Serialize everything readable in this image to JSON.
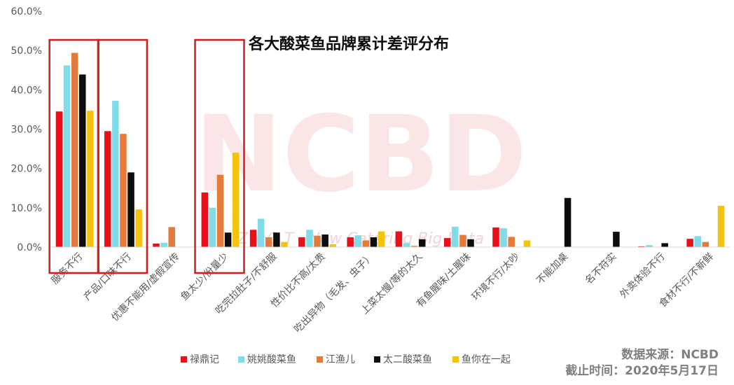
{
  "chart_data": {
    "type": "bar",
    "title": "各大酸菜鱼品牌累计差评分布",
    "ylim": [
      0,
      60
    ],
    "yticks": [
      "0.0%",
      "10.0%",
      "20.0%",
      "30.0%",
      "40.0%",
      "50.0%",
      "60.0%"
    ],
    "categories": [
      "服务不行",
      "产品/口味不行",
      "优惠不能用/虚假宣传",
      "鱼太少/份量少",
      "吃完拉肚子/不舒服",
      "性价比不高/太贵",
      "吃出异物（毛发、虫子）",
      "上菜太慢/等的太久",
      "有鱼腥味/土腥味",
      "环境不行/太吵",
      "不能加桌",
      "名不符实",
      "外卖体验不行",
      "食材不行/不新鲜"
    ],
    "series": [
      {
        "name": "禄鼎记",
        "color": "#e8101a",
        "values": [
          34.5,
          29.5,
          0.9,
          13.9,
          4.4,
          2.5,
          2.5,
          4.0,
          2.3,
          5.0,
          0,
          0,
          0.2,
          2.1
        ]
      },
      {
        "name": "姚姚酸菜鱼",
        "color": "#7fdce8",
        "values": [
          46.2,
          37.2,
          1.1,
          10.0,
          7.2,
          4.4,
          3.0,
          1.0,
          5.2,
          4.8,
          0,
          0,
          0.5,
          2.8
        ]
      },
      {
        "name": "江渔儿",
        "color": "#e47b3a",
        "values": [
          49.4,
          28.8,
          5.1,
          18.4,
          2.5,
          2.9,
          1.7,
          0.3,
          3.1,
          2.6,
          0,
          0,
          0,
          1.3
        ]
      },
      {
        "name": "太二酸菜鱼",
        "color": "#0d0d0d",
        "values": [
          43.9,
          19.0,
          0,
          3.7,
          3.7,
          3.2,
          2.5,
          2.0,
          2.0,
          0,
          12.5,
          3.9,
          1.0,
          0
        ]
      },
      {
        "name": "鱼你在一起",
        "color": "#f2c40f",
        "values": [
          34.7,
          9.6,
          0,
          24.0,
          1.3,
          0.7,
          4.0,
          0,
          0,
          1.7,
          0,
          0,
          0,
          10.5
        ]
      }
    ],
    "highlighted_categories": [
      "服务不行",
      "产品/口味不行",
      "鱼太少/份量少"
    ],
    "grid": false,
    "legend_position": "bottom"
  },
  "watermark": {
    "main": "NCBD",
    "sub": "Z Y Q T · New Catering Big Data"
  },
  "source": {
    "line1": "数据来源：NCBD",
    "line2": "截止时间：2020年5月17日"
  }
}
